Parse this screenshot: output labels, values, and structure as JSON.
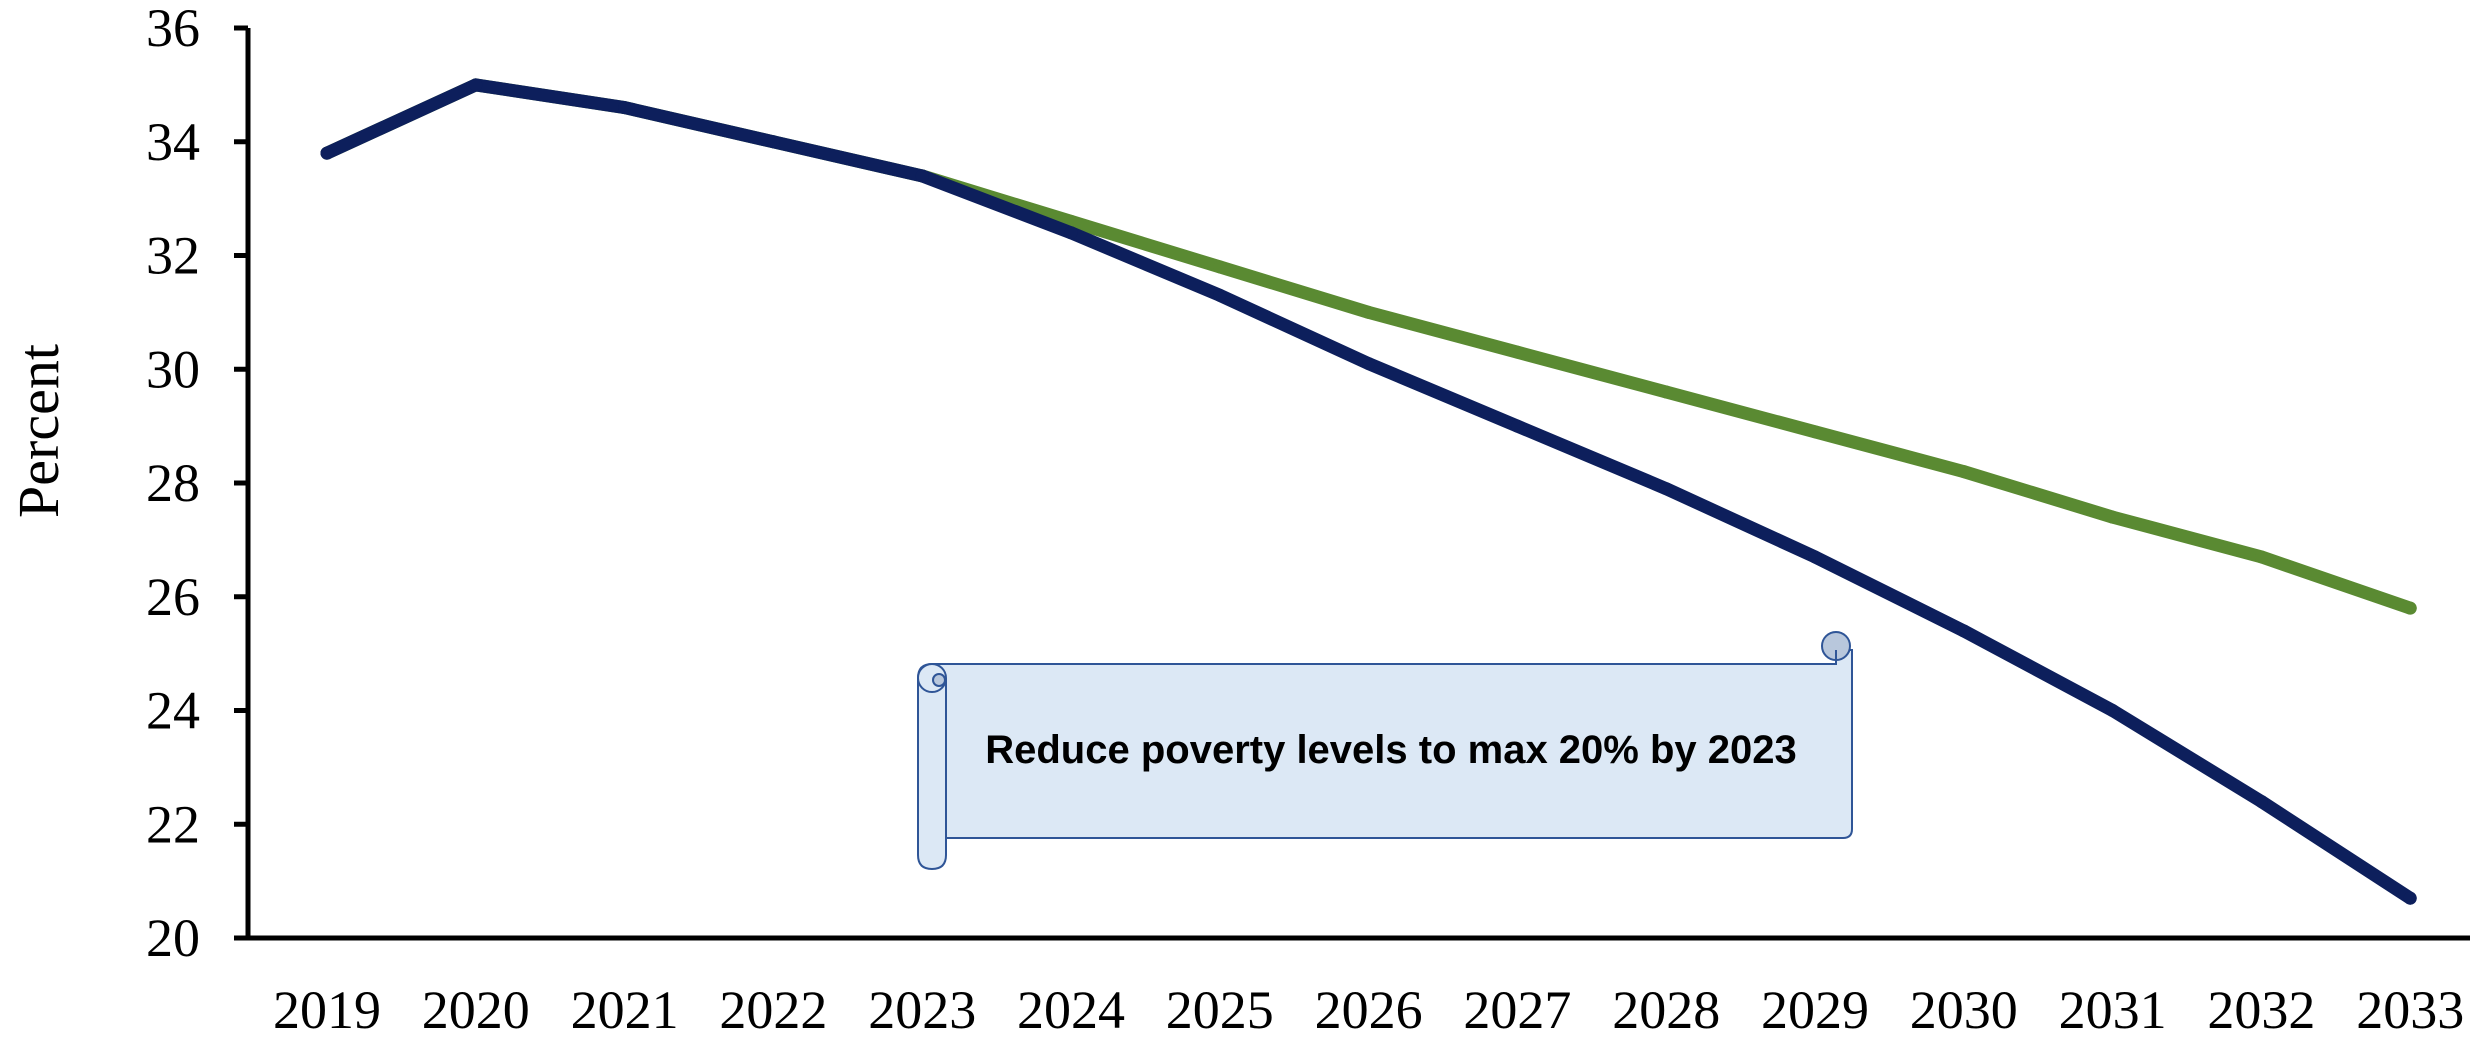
{
  "chart_data": {
    "type": "line",
    "title": "",
    "xlabel": "",
    "ylabel": "Percent",
    "categories": [
      "2019",
      "2020",
      "2021",
      "2022",
      "2023",
      "2024",
      "2025",
      "2026",
      "2027",
      "2028",
      "2029",
      "2030",
      "2031",
      "2032",
      "2033"
    ],
    "yticks": [
      "20",
      "22",
      "24",
      "26",
      "28",
      "30",
      "32",
      "34",
      "36"
    ],
    "ylim": [
      20,
      36
    ],
    "grid": false,
    "legend": "none",
    "series": [
      {
        "color": "#5a8a32",
        "values": [
          33.8,
          35.0,
          34.6,
          34.0,
          33.4,
          32.6,
          31.8,
          31.0,
          30.3,
          29.6,
          28.9,
          28.2,
          27.4,
          26.7,
          25.8
        ]
      },
      {
        "color": "#0d1f5c",
        "values": [
          33.8,
          35.0,
          34.6,
          34.0,
          33.4,
          32.4,
          31.3,
          30.1,
          29.0,
          27.9,
          26.7,
          25.4,
          24.0,
          22.4,
          20.7
        ]
      }
    ],
    "annotations": [
      {
        "text": "Reduce poverty levels to max 20% by 2023",
        "style": "scroll-banner",
        "fill": "#dce8f5",
        "stroke": "#2f5597"
      }
    ]
  }
}
